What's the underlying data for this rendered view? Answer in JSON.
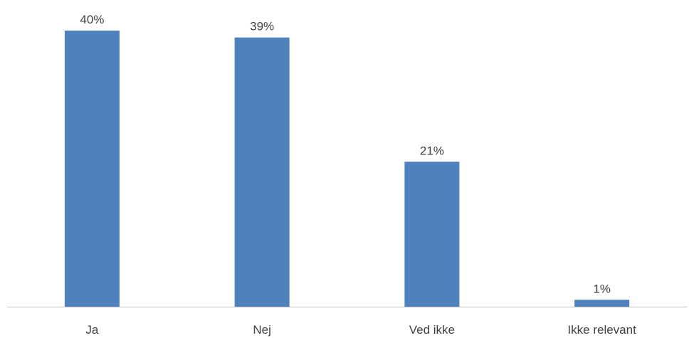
{
  "chart_data": {
    "type": "bar",
    "categories": [
      "Ja",
      "Nej",
      "Ved ikke",
      "Ikke relevant"
    ],
    "values": [
      40,
      39,
      21,
      1
    ],
    "data_labels": [
      "40%",
      "39%",
      "21%",
      "1%"
    ],
    "unit": "%",
    "title": "",
    "xlabel": "",
    "ylabel": "",
    "ylim": [
      0,
      40
    ],
    "grid": false,
    "legend": "none",
    "bar_color": "#4F81BD",
    "axis_color": "#BFBFBF",
    "text_color": "#404040"
  }
}
